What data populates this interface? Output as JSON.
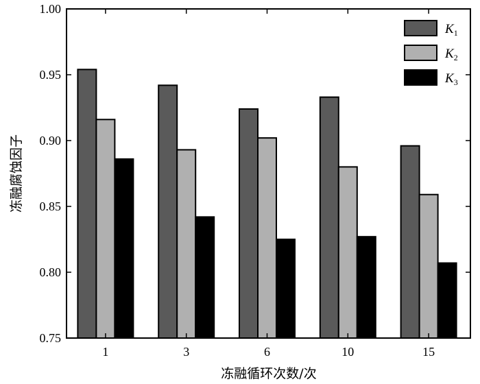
{
  "chart_data": {
    "type": "bar",
    "categories": [
      "1",
      "3",
      "6",
      "10",
      "15"
    ],
    "series": [
      {
        "name": "K",
        "subscript": "1",
        "values": [
          0.954,
          0.942,
          0.924,
          0.933,
          0.896
        ]
      },
      {
        "name": "K",
        "subscript": "2",
        "values": [
          0.916,
          0.893,
          0.902,
          0.88,
          0.859
        ]
      },
      {
        "name": "K",
        "subscript": "3",
        "values": [
          0.886,
          0.842,
          0.825,
          0.827,
          0.807
        ]
      }
    ],
    "colors": [
      "#5a5a5a",
      "#b0b0b0",
      "#000000"
    ],
    "xlabel": "冻融循环次数/次",
    "ylabel": "冻融腐蚀因子",
    "ylim": [
      0.75,
      1.0
    ],
    "yticks": [
      "0.75",
      "0.80",
      "0.85",
      "0.90",
      "0.95",
      "1.00"
    ],
    "grid": false,
    "legend_position": "top-right"
  }
}
